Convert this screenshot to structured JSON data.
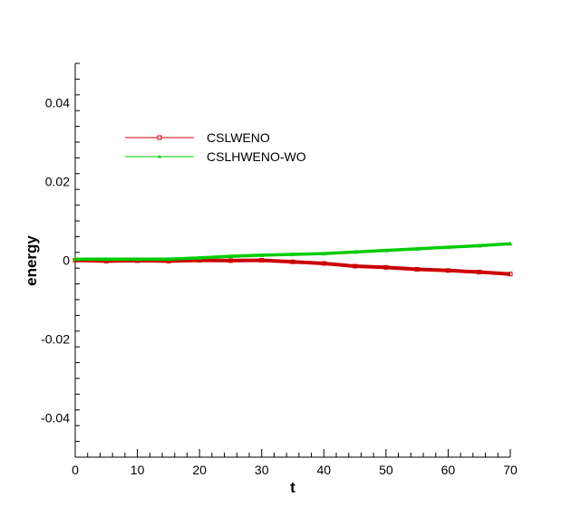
{
  "chart_data": {
    "type": "line",
    "title": "",
    "xlabel": "t",
    "ylabel": "energy",
    "xlim": [
      0,
      70
    ],
    "ylim": [
      -0.05,
      0.05
    ],
    "x_ticks": [
      0,
      10,
      20,
      30,
      40,
      50,
      60,
      70
    ],
    "x_tick_labels": [
      "0",
      "10",
      "20",
      "30",
      "40",
      "50",
      "60",
      "70"
    ],
    "y_ticks": [
      -0.04,
      -0.02,
      0,
      0.02,
      0.04
    ],
    "y_tick_labels": [
      "-0.04",
      "-0.02",
      "0",
      "0.02",
      "0.04"
    ],
    "grid": false,
    "legend_position": "upper-left",
    "series": [
      {
        "name": "CSLWENO",
        "color": "#cc0000",
        "marker": "square",
        "x": [
          0,
          5,
          10,
          15,
          20,
          25,
          30,
          35,
          40,
          45,
          50,
          55,
          60,
          65,
          70
        ],
        "y": [
          0,
          -0.0002,
          -0.0001,
          -0.0002,
          0,
          -0.0001,
          0,
          -0.0004,
          -0.0008,
          -0.0015,
          -0.0018,
          -0.0023,
          -0.0026,
          -0.003,
          -0.0035
        ]
      },
      {
        "name": "CSLHWENO-WO",
        "color": "#00cc00",
        "marker": "triangle",
        "x": [
          0,
          5,
          10,
          15,
          20,
          25,
          30,
          35,
          40,
          45,
          50,
          55,
          60,
          65,
          70
        ],
        "y": [
          0.0003,
          0.0003,
          0.0003,
          0.0003,
          0.0006,
          0.001,
          0.0013,
          0.0015,
          0.0017,
          0.0021,
          0.0025,
          0.0029,
          0.0033,
          0.0037,
          0.0042
        ]
      }
    ]
  }
}
